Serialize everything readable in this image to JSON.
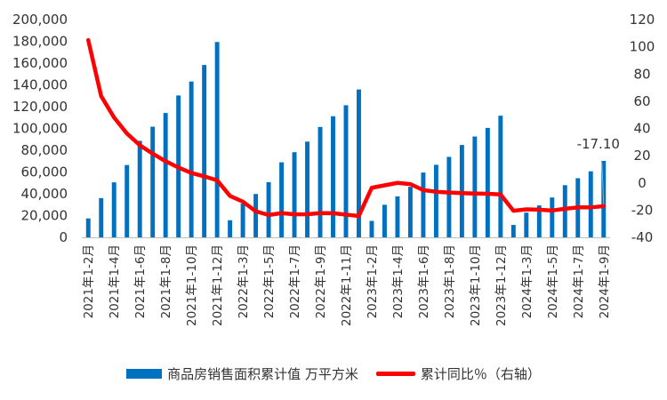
{
  "chart_data": {
    "type": "bar+line",
    "categories": [
      "2021年1-2月",
      "2021年1-3月",
      "2021年1-4月",
      "2021年1-5月",
      "2021年1-6月",
      "2021年1-7月",
      "2021年1-8月",
      "2021年1-9月",
      "2021年1-10月",
      "2021年1-11月",
      "2021年1-12月",
      "2022年1-2月",
      "2022年1-3月",
      "2022年1-4月",
      "2022年1-5月",
      "2022年1-6月",
      "2022年1-7月",
      "2022年1-8月",
      "2022年1-9月",
      "2022年1-10月",
      "2022年1-11月",
      "2022年1-12月",
      "2023年1-2月",
      "2023年1-3月",
      "2023年1-4月",
      "2023年1-5月",
      "2023年1-6月",
      "2023年1-7月",
      "2023年1-8月",
      "2023年1-9月",
      "2023年1-10月",
      "2023年1-11月",
      "2023年1-12月",
      "2024年1-2月",
      "2024年1-3月",
      "2024年1-4月",
      "2024年1-5月",
      "2024年1-6月",
      "2024年1-7月",
      "2024年1-8月",
      "2024年1-9月"
    ],
    "x_tick_labels": [
      "2021年1-2月",
      "2021年1-4月",
      "2021年1-6月",
      "2021年1-8月",
      "2021年1-10月",
      "2021年1-12月",
      "2022年1-3月",
      "2022年1-5月",
      "2022年1-7月",
      "2022年1-9月",
      "2022年1-11月",
      "2023年1-2月",
      "2023年1-4月",
      "2023年1-6月",
      "2023年1-8月",
      "2023年1-10月",
      "2023年1-12月",
      "2024年1-3月",
      "2024年1-5月",
      "2024年1-7月",
      "2024年1-9月"
    ],
    "series": [
      {
        "name": "商品房销售面积累计值 万平方米",
        "type": "bar",
        "axis": "left",
        "color": "#0070C0",
        "values": [
          17362,
          36007,
          50500,
          66400,
          88600,
          101600,
          114200,
          130300,
          143100,
          158300,
          179400,
          15700,
          31000,
          39800,
          50700,
          68900,
          78200,
          87900,
          101400,
          111200,
          121300,
          135800,
          15100,
          29900,
          37600,
          46400,
          59500,
          66600,
          73900,
          84800,
          92600,
          100500,
          111700,
          11400,
          22700,
          29300,
          36600,
          47900,
          54300,
          60600,
          70200
        ]
      },
      {
        "name": "累计同比％（右轴）",
        "type": "line",
        "axis": "right",
        "color": "#FF0000",
        "values": [
          104.9,
          63.8,
          48.1,
          36.3,
          27.7,
          21.5,
          15.9,
          11.3,
          7.3,
          4.8,
          1.9,
          -9.6,
          -13.8,
          -20.9,
          -23.6,
          -22.2,
          -23.1,
          -23.0,
          -22.2,
          -22.3,
          -23.3,
          -24.3,
          -3.6,
          -1.8,
          0.0,
          -0.9,
          -5.3,
          -6.5,
          -7.1,
          -7.5,
          -7.8,
          -8.0,
          -8.5,
          -20.5,
          -19.4,
          -19.7,
          -20.3,
          -19.0,
          -18.0,
          -18.0,
          -17.1
        ]
      }
    ],
    "y_left": {
      "min": 0,
      "max": 200000,
      "step": 20000,
      "tick_labels": [
        "0",
        "20,000",
        "40,000",
        "60,000",
        "80,000",
        "100,000",
        "120,000",
        "140,000",
        "160,000",
        "180,000",
        "200,000"
      ]
    },
    "y_right": {
      "min": -40,
      "max": 120,
      "step": 20,
      "tick_labels": [
        "-40",
        "-20",
        "0",
        "20",
        "40",
        "60",
        "80",
        "100",
        "120"
      ]
    },
    "annotation": {
      "text": "-17.10",
      "series": 1,
      "index": 40
    },
    "grid": false,
    "legend_position": "bottom"
  }
}
